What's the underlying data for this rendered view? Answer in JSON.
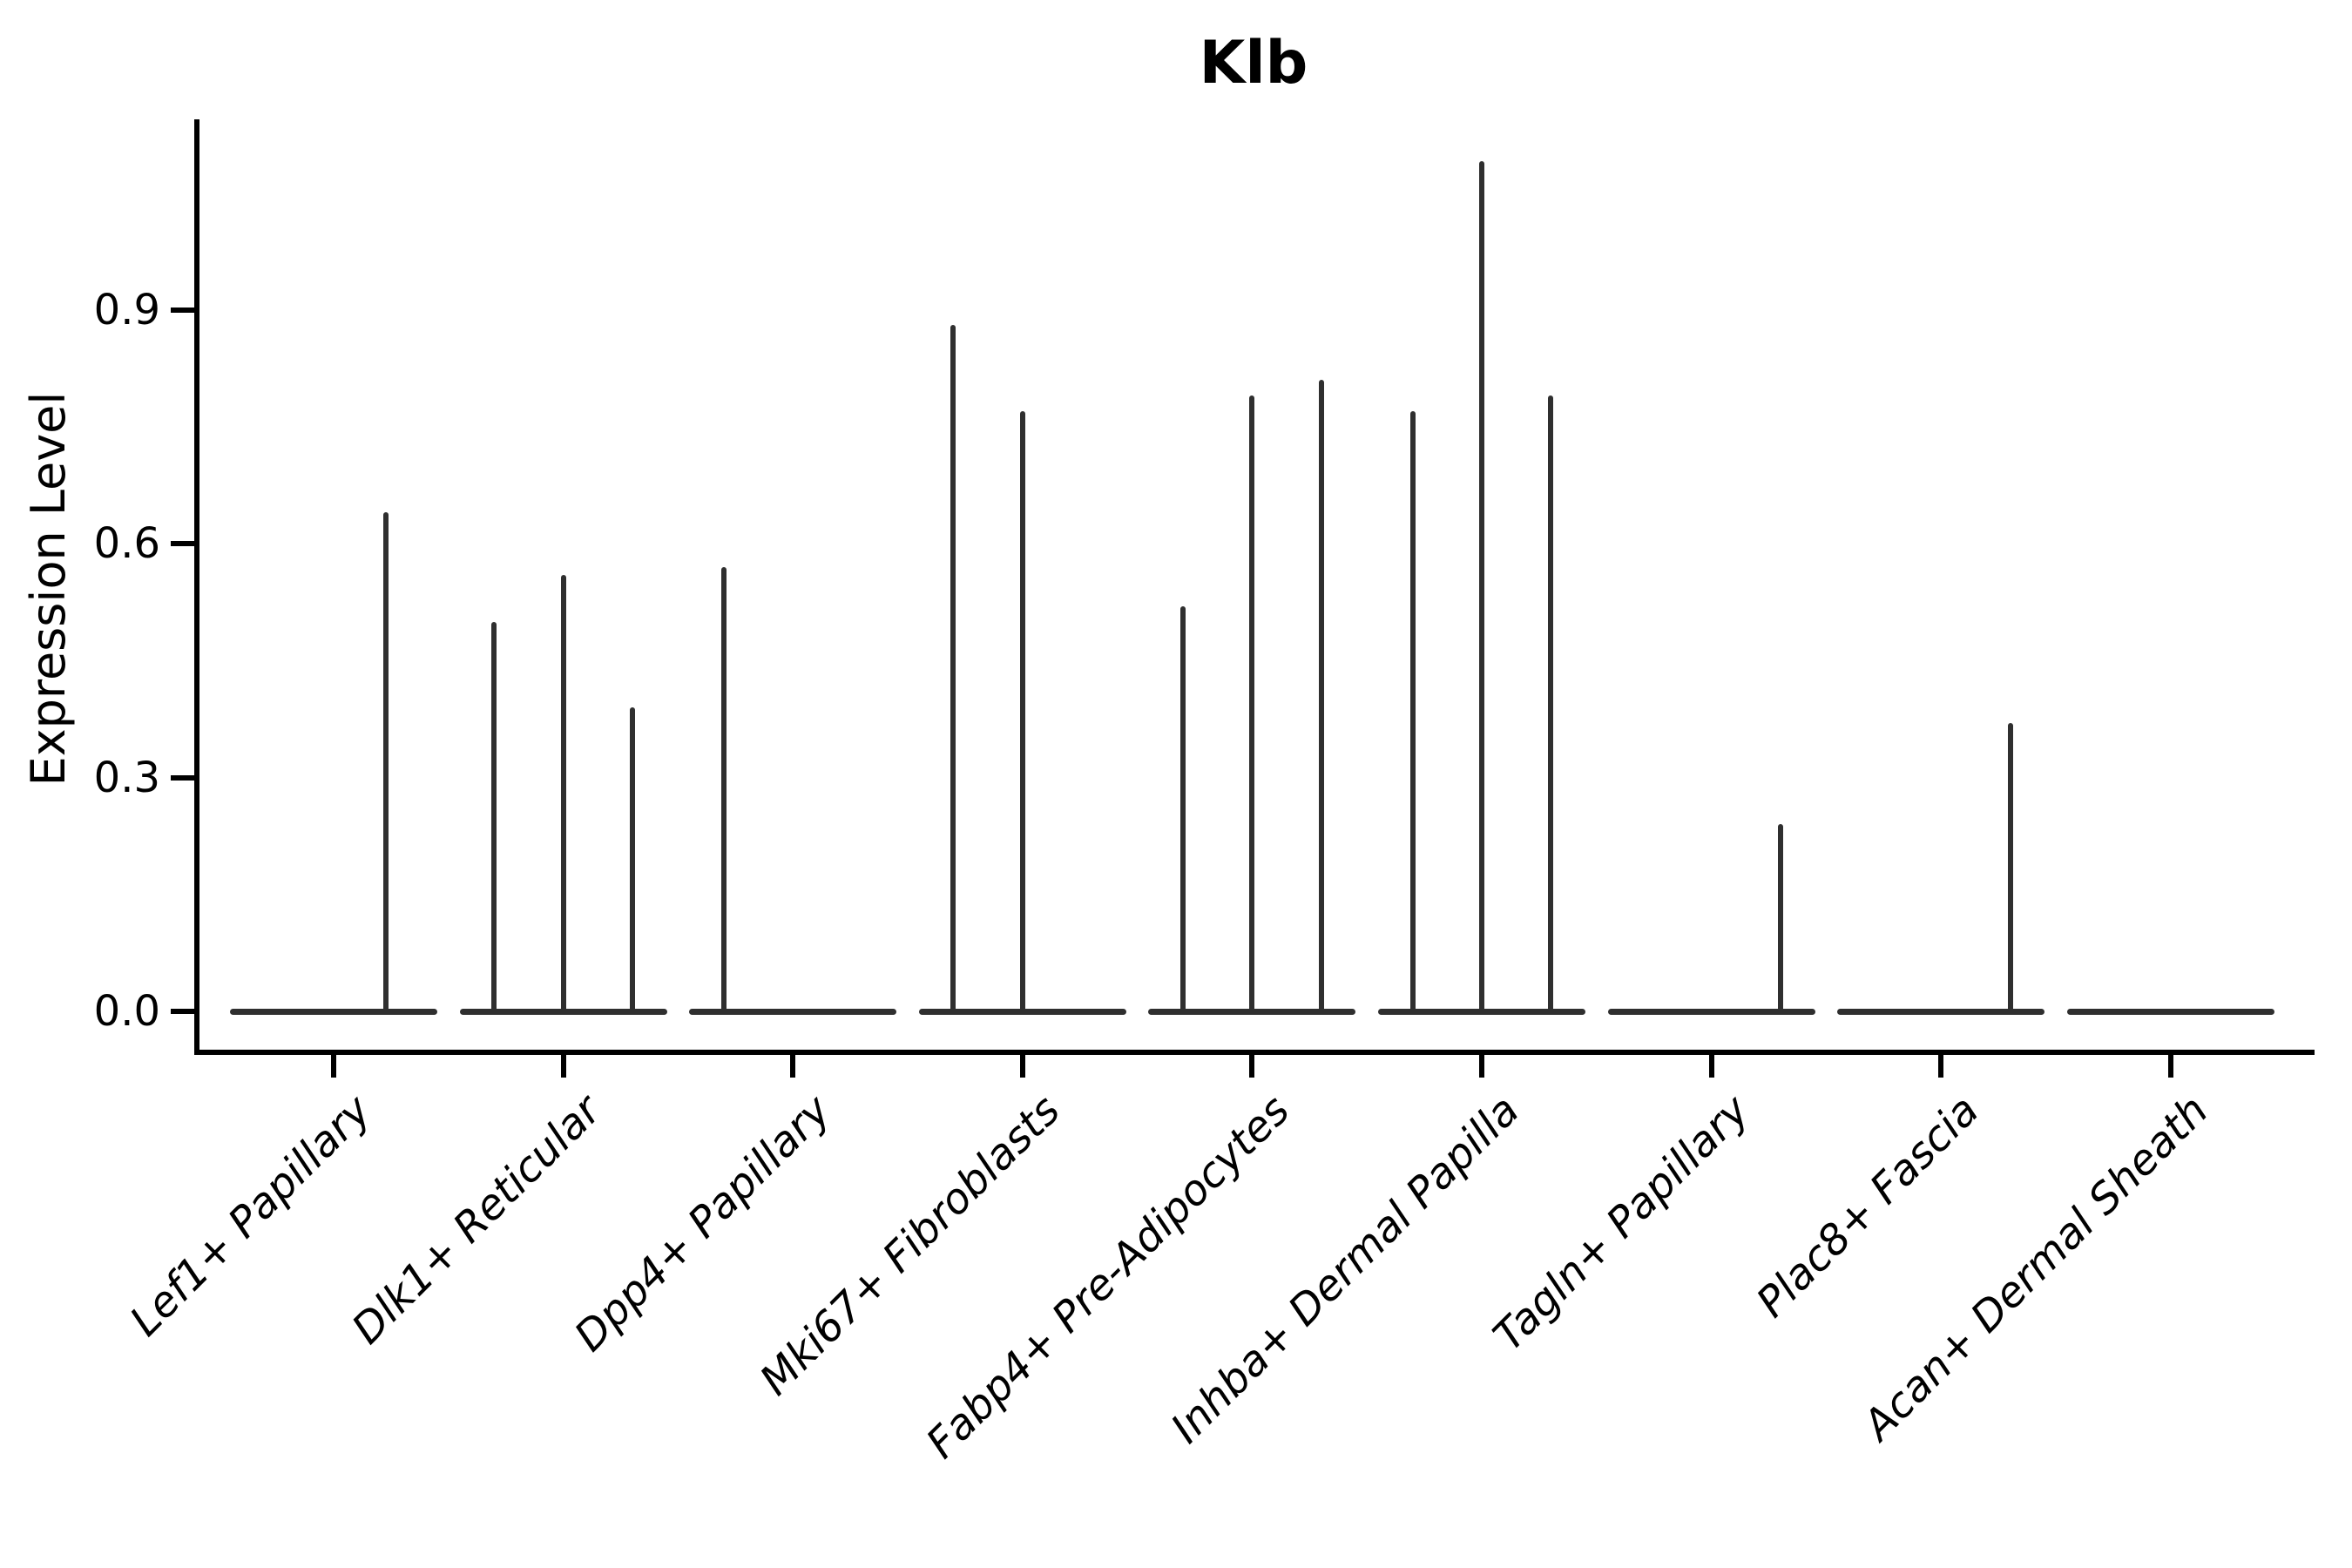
{
  "chart_data": {
    "type": "violin",
    "title": "Klb",
    "xlabel": "",
    "ylabel": "Expression Level",
    "ytick_labels": [
      "0.0",
      "0.3",
      "0.6",
      "0.9"
    ],
    "ytick_values": [
      0.0,
      0.3,
      0.6,
      0.9
    ],
    "ylim": [
      -0.05,
      1.14
    ],
    "grid": false,
    "legend_position": "none",
    "background_color": "#ffffff",
    "axis_color": "#000000",
    "violin_color": "#2f2f2f",
    "note": "Each category shows thin needle-like violins: most cells at 0 expression (flat baseline), spikes mark sub-violin maxima",
    "categories": [
      {
        "label": "Lef1+ Papillary",
        "violin_max_values": [
          0,
          0.64
        ]
      },
      {
        "label": "Dlk1+ Reticular",
        "violin_max_values": [
          0.5,
          0.56,
          0.39
        ]
      },
      {
        "label": "Dpp4+ Papillary",
        "violin_max_values": [
          0.57,
          0,
          0
        ]
      },
      {
        "label": "Mki67+ Fibroblasts",
        "violin_max_values": [
          0.88,
          0.77,
          0
        ]
      },
      {
        "label": "Fabp4+ Pre-Adipocytes",
        "violin_max_values": [
          0.52,
          0.79,
          0.81
        ]
      },
      {
        "label": "Inhba+ Dermal Papilla",
        "violin_max_values": [
          0.77,
          1.09,
          0.79
        ]
      },
      {
        "label": "Tagln+ Papillary",
        "violin_max_values": [
          0,
          0,
          0.24
        ]
      },
      {
        "label": "Plac8+ Fascia",
        "violin_max_values": [
          0,
          0,
          0.37
        ]
      },
      {
        "label": "Acan+ Dermal Sheath",
        "violin_max_values": [
          0,
          0,
          0
        ]
      }
    ]
  }
}
